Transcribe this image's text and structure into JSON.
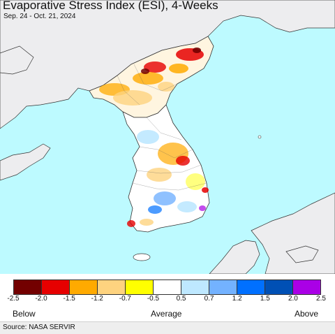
{
  "header": {
    "title": "Evaporative Stress Index (ESI), 4-Weeks",
    "date_range": "Sep. 24 - Oct. 21, 2024"
  },
  "colors": {
    "ocean": "#bdfaff",
    "land_outside": "#ededef",
    "land_neutral": "#ffffff",
    "border": "#333333"
  },
  "legend": {
    "tick_labels": [
      "-2.5",
      "-2.0",
      "-1.5",
      "-1.2",
      "-0.7",
      "-0.5",
      "0.5",
      "0.7",
      "1.2",
      "1.5",
      "2.0",
      "2.5"
    ],
    "colors": [
      "#730000",
      "#e60000",
      "#ffaa00",
      "#fed37f",
      "#ffff00",
      "#ffffff",
      "#bee8ff",
      "#73b2ff",
      "#0070ff",
      "#0050b5",
      "#aa00e6"
    ],
    "below_label": "Below",
    "average_label": "Average",
    "above_label": "Above"
  },
  "footer": {
    "source": "Source: NASA SERVIR"
  }
}
